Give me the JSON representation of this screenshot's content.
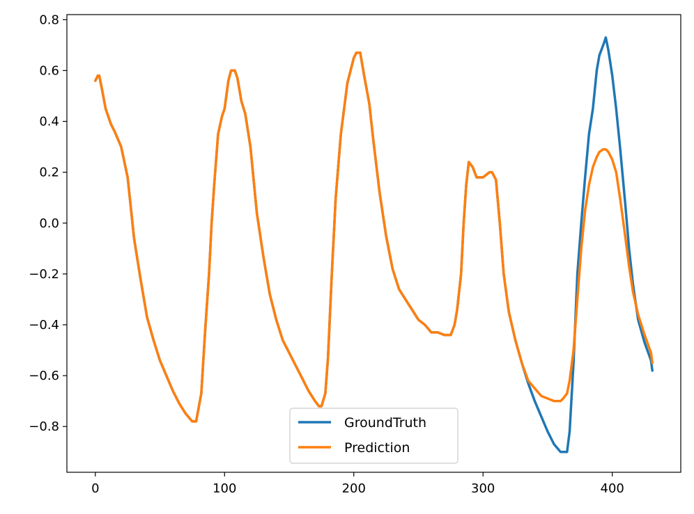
{
  "chart_data": {
    "type": "line",
    "title": "",
    "xlabel": "",
    "ylabel": "",
    "xlim": [
      -22,
      453
    ],
    "ylim": [
      -0.98,
      0.82
    ],
    "xticks": [
      0,
      100,
      200,
      300,
      400
    ],
    "xtick_labels": [
      "0",
      "100",
      "200",
      "300",
      "400"
    ],
    "yticks": [
      -0.8,
      -0.6,
      -0.4,
      -0.2,
      0.0,
      0.2,
      0.4,
      0.6,
      0.8
    ],
    "ytick_labels": [
      "−0.8",
      "−0.6",
      "−0.4",
      "−0.2",
      "0.0",
      "0.2",
      "0.4",
      "0.6",
      "0.8"
    ],
    "grid": false,
    "legend_position": "lower-center",
    "series": [
      {
        "name": "GroundTruth",
        "color": "#1f77b4",
        "x": [
          0,
          2,
          3,
          5,
          8,
          12,
          15,
          20,
          25,
          30,
          35,
          40,
          45,
          50,
          55,
          60,
          65,
          70,
          75,
          78,
          82,
          85,
          88,
          90,
          92,
          95,
          98,
          100,
          103,
          105,
          108,
          110,
          113,
          116,
          120,
          125,
          130,
          135,
          140,
          145,
          150,
          155,
          160,
          165,
          170,
          173,
          175,
          178,
          180,
          183,
          186,
          190,
          195,
          200,
          202,
          205,
          208,
          212,
          215,
          220,
          225,
          230,
          235,
          240,
          245,
          250,
          255,
          260,
          265,
          270,
          272,
          275,
          278,
          280,
          283,
          285,
          287,
          289,
          292,
          295,
          300,
          305,
          307,
          310,
          313,
          316,
          320,
          325,
          330,
          335,
          340,
          345,
          350,
          355,
          360,
          362,
          365,
          367,
          370,
          373,
          376,
          379,
          382,
          385,
          388,
          390,
          393,
          395,
          397,
          400,
          403,
          406,
          410,
          413,
          416,
          420,
          425,
          430,
          431
        ],
        "y": [
          0.56,
          0.58,
          0.58,
          0.53,
          0.45,
          0.39,
          0.36,
          0.3,
          0.18,
          -0.06,
          -0.22,
          -0.37,
          -0.46,
          -0.54,
          -0.6,
          -0.66,
          -0.71,
          -0.75,
          -0.78,
          -0.78,
          -0.67,
          -0.42,
          -0.2,
          0.0,
          0.15,
          0.35,
          0.42,
          0.45,
          0.56,
          0.6,
          0.6,
          0.57,
          0.48,
          0.43,
          0.3,
          0.04,
          -0.13,
          -0.28,
          -0.38,
          -0.46,
          -0.51,
          -0.56,
          -0.61,
          -0.66,
          -0.7,
          -0.72,
          -0.72,
          -0.67,
          -0.53,
          -0.2,
          0.1,
          0.35,
          0.55,
          0.65,
          0.67,
          0.67,
          0.58,
          0.47,
          0.33,
          0.12,
          -0.05,
          -0.18,
          -0.26,
          -0.3,
          -0.34,
          -0.38,
          -0.4,
          -0.43,
          -0.43,
          -0.44,
          -0.44,
          -0.44,
          -0.4,
          -0.34,
          -0.2,
          0.0,
          0.15,
          0.24,
          0.22,
          0.18,
          0.18,
          0.2,
          0.2,
          0.17,
          0.0,
          -0.2,
          -0.35,
          -0.46,
          -0.55,
          -0.63,
          -0.7,
          -0.76,
          -0.82,
          -0.87,
          -0.9,
          -0.9,
          -0.9,
          -0.82,
          -0.55,
          -0.2,
          0.0,
          0.18,
          0.35,
          0.45,
          0.6,
          0.66,
          0.7,
          0.73,
          0.68,
          0.58,
          0.45,
          0.3,
          0.08,
          -0.1,
          -0.24,
          -0.38,
          -0.47,
          -0.54,
          -0.58
        ]
      },
      {
        "name": "Prediction",
        "color": "#ff7f0e",
        "x": [
          0,
          2,
          3,
          5,
          8,
          12,
          15,
          20,
          25,
          30,
          35,
          40,
          45,
          50,
          55,
          60,
          65,
          70,
          75,
          78,
          82,
          85,
          88,
          90,
          92,
          95,
          98,
          100,
          103,
          105,
          108,
          110,
          113,
          116,
          120,
          125,
          130,
          135,
          140,
          145,
          150,
          155,
          160,
          165,
          170,
          173,
          175,
          178,
          180,
          183,
          186,
          190,
          195,
          200,
          202,
          205,
          208,
          212,
          215,
          220,
          225,
          230,
          235,
          240,
          245,
          250,
          255,
          260,
          265,
          270,
          272,
          275,
          278,
          280,
          283,
          285,
          287,
          289,
          292,
          295,
          300,
          305,
          307,
          310,
          313,
          316,
          320,
          325,
          330,
          335,
          340,
          345,
          350,
          355,
          360,
          362,
          365,
          367,
          370,
          373,
          376,
          379,
          382,
          385,
          388,
          390,
          393,
          395,
          397,
          400,
          403,
          406,
          410,
          413,
          416,
          420,
          425,
          430,
          431
        ],
        "y": [
          0.56,
          0.58,
          0.58,
          0.53,
          0.45,
          0.39,
          0.36,
          0.3,
          0.18,
          -0.06,
          -0.22,
          -0.37,
          -0.46,
          -0.54,
          -0.6,
          -0.66,
          -0.71,
          -0.75,
          -0.78,
          -0.78,
          -0.67,
          -0.42,
          -0.2,
          0.0,
          0.15,
          0.35,
          0.42,
          0.45,
          0.56,
          0.6,
          0.6,
          0.57,
          0.48,
          0.43,
          0.3,
          0.04,
          -0.13,
          -0.28,
          -0.38,
          -0.46,
          -0.51,
          -0.56,
          -0.61,
          -0.66,
          -0.7,
          -0.72,
          -0.72,
          -0.67,
          -0.53,
          -0.2,
          0.1,
          0.35,
          0.55,
          0.65,
          0.67,
          0.67,
          0.58,
          0.47,
          0.33,
          0.12,
          -0.05,
          -0.18,
          -0.26,
          -0.3,
          -0.34,
          -0.38,
          -0.4,
          -0.43,
          -0.43,
          -0.44,
          -0.44,
          -0.44,
          -0.4,
          -0.34,
          -0.2,
          0.0,
          0.15,
          0.24,
          0.22,
          0.18,
          0.18,
          0.2,
          0.2,
          0.17,
          0.0,
          -0.2,
          -0.35,
          -0.46,
          -0.55,
          -0.62,
          -0.65,
          -0.68,
          -0.69,
          -0.7,
          -0.7,
          -0.69,
          -0.67,
          -0.62,
          -0.5,
          -0.3,
          -0.1,
          0.05,
          0.15,
          0.22,
          0.26,
          0.28,
          0.29,
          0.29,
          0.28,
          0.25,
          0.2,
          0.1,
          -0.05,
          -0.17,
          -0.27,
          -0.36,
          -0.44,
          -0.51,
          -0.55
        ]
      }
    ]
  }
}
